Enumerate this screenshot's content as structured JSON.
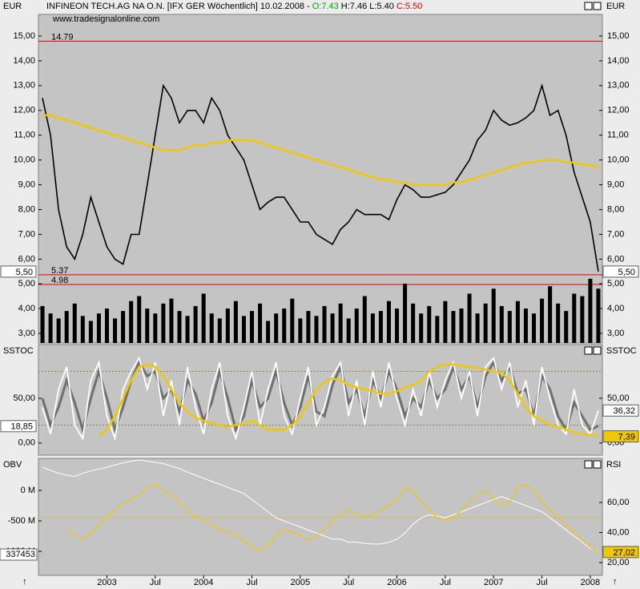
{
  "header": {
    "symbol": "INFINEON TECH.AG NA O.N. [IFX GER  Wöchentlich] 10.02.2008 - ",
    "open": "O:7.43",
    "high_low": "H:7.46 L:5.40",
    "close": "C:5.50",
    "source": "www.tradesignalonline.com"
  },
  "chart_data": [
    {
      "type": "line",
      "axis_label": "EUR",
      "ylim": [
        5.4,
        15.87
      ],
      "yticks": [
        {
          "value": 6,
          "label": "6,00"
        },
        {
          "value": 7,
          "label": "7,00"
        },
        {
          "value": 8,
          "label": "8,00"
        },
        {
          "value": 9,
          "label": "9,00"
        },
        {
          "value": 10,
          "label": "10,00"
        },
        {
          "value": 11,
          "label": "11,00"
        },
        {
          "value": 12,
          "label": "12,00"
        },
        {
          "value": 13,
          "label": "13,00"
        },
        {
          "value": 14,
          "label": "14,00"
        },
        {
          "value": 15,
          "label": "15,00"
        }
      ],
      "reference_lines": [
        14.79,
        5.37,
        4.98
      ],
      "reference_color": "#e00000",
      "series": [
        {
          "color": "#000000",
          "width": 1.6,
          "last_value_label": "5,50",
          "label_side": "both",
          "values": [
            12.5,
            11,
            8,
            6.5,
            6,
            7,
            8.5,
            7.5,
            6.5,
            6,
            5.8,
            7,
            7,
            9,
            11,
            13,
            12.5,
            11.5,
            12,
            12,
            11.5,
            12.5,
            12,
            11,
            10.5,
            10,
            9,
            8,
            8.3,
            8.5,
            8.5,
            8,
            7.5,
            7.5,
            7,
            6.8,
            6.6,
            7.2,
            7.5,
            8,
            7.8,
            7.8,
            7.8,
            7.6,
            8.4,
            9,
            8.8,
            8.5,
            8.5,
            8.6,
            8.7,
            9,
            9.5,
            10,
            10.8,
            11.2,
            12,
            11.6,
            11.4,
            11.5,
            11.7,
            12,
            13,
            11.8,
            12,
            11,
            9.5,
            8.5,
            7.5,
            5.5
          ]
        },
        {
          "color": "#f0c800",
          "width": 2.5,
          "values": [
            11.8,
            11.8,
            11.7,
            11.6,
            11.5,
            11.4,
            11.3,
            11.2,
            11.1,
            11.0,
            10.9,
            10.8,
            10.7,
            10.6,
            10.5,
            10.4,
            10.4,
            10.4,
            10.5,
            10.6,
            10.6,
            10.7,
            10.7,
            10.8,
            10.8,
            10.8,
            10.8,
            10.7,
            10.6,
            10.5,
            10.4,
            10.3,
            10.2,
            10.1,
            10.0,
            9.9,
            9.8,
            9.7,
            9.6,
            9.5,
            9.4,
            9.3,
            9.2,
            9.2,
            9.1,
            9.1,
            9.0,
            9.0,
            9.0,
            9.0,
            9.0,
            9.1,
            9.1,
            9.2,
            9.3,
            9.4,
            9.5,
            9.6,
            9.7,
            9.8,
            9.9,
            9.9,
            10.0,
            10.0,
            10.0,
            9.9,
            9.9,
            9.8,
            9.8,
            9.7
          ]
        }
      ]
    },
    {
      "type": "bar",
      "ylim": [
        2.61,
        5.39
      ],
      "yticks": [
        {
          "value": 3,
          "label": "3,00"
        },
        {
          "value": 4,
          "label": "4,00"
        },
        {
          "value": 5,
          "label": "5,00"
        }
      ],
      "series": [
        {
          "color": "#000000",
          "values": [
            4.1,
            3.8,
            3.6,
            3.9,
            4.2,
            3.7,
            3.5,
            3.8,
            4.0,
            3.6,
            3.9,
            4.3,
            4.5,
            4.0,
            3.8,
            4.2,
            4.4,
            3.9,
            3.7,
            4.1,
            4.6,
            3.8,
            3.6,
            4.0,
            4.3,
            3.7,
            3.9,
            4.2,
            3.5,
            3.8,
            4.0,
            4.4,
            3.6,
            3.9,
            3.7,
            4.1,
            3.8,
            4.2,
            3.6,
            4.0,
            4.5,
            3.8,
            3.9,
            4.3,
            4.0,
            5.0,
            4.2,
            3.8,
            4.1,
            3.7,
            4.3,
            3.9,
            4.0,
            4.6,
            3.8,
            4.2,
            4.8,
            4.1,
            3.9,
            4.3,
            4.0,
            3.8,
            4.4,
            4.9,
            4.2,
            3.9,
            4.6,
            4.5,
            5.2,
            4.8
          ]
        }
      ]
    },
    {
      "type": "line",
      "axis_label": "SSTOC",
      "ylim": [
        -13.6,
        110
      ],
      "yticks": [
        {
          "value": 0,
          "label": "0,00"
        },
        {
          "value": 50,
          "label": "50,00"
        }
      ],
      "reference_lines": [
        20,
        80
      ],
      "reference_color": "#8a8a50",
      "series": [
        {
          "color": "#707070",
          "width": 3,
          "last_value_label": "18,85",
          "label_side": "left",
          "values": [
            50,
            20,
            40,
            70,
            45,
            15,
            50,
            80,
            50,
            15,
            40,
            70,
            90,
            75,
            80,
            50,
            60,
            35,
            70,
            55,
            25,
            45,
            80,
            50,
            15,
            30,
            70,
            40,
            50,
            80,
            45,
            20,
            40,
            75,
            35,
            30,
            65,
            85,
            45,
            60,
            30,
            70,
            50,
            80,
            60,
            30,
            50,
            40,
            70,
            50,
            60,
            85,
            60,
            75,
            40,
            75,
            90,
            70,
            85,
            55,
            60,
            30,
            75,
            60,
            30,
            15,
            45,
            30,
            15,
            18.85
          ]
        },
        {
          "color": "#ffffff",
          "width": 1.8,
          "last_value_label": "36,32",
          "label_side": "right",
          "values": [
            40,
            10,
            60,
            85,
            20,
            5,
            70,
            90,
            30,
            5,
            60,
            80,
            95,
            60,
            90,
            30,
            70,
            20,
            85,
            40,
            10,
            60,
            90,
            30,
            5,
            40,
            80,
            20,
            60,
            90,
            30,
            10,
            50,
            85,
            20,
            40,
            75,
            90,
            30,
            70,
            20,
            80,
            40,
            90,
            50,
            20,
            60,
            30,
            80,
            40,
            70,
            90,
            50,
            80,
            30,
            85,
            95,
            60,
            90,
            40,
            70,
            20,
            85,
            50,
            20,
            10,
            60,
            20,
            10,
            36.32
          ]
        },
        {
          "color": "#f0c800",
          "width": 2.5,
          "last_value_label": "7,39",
          "label_side": "right",
          "values": [
            null,
            null,
            null,
            null,
            null,
            null,
            null,
            8,
            15,
            30,
            50,
            70,
            85,
            88,
            85,
            75,
            60,
            45,
            35,
            28,
            25,
            22,
            20,
            18,
            20,
            22,
            25,
            20,
            15,
            15,
            15,
            20,
            30,
            45,
            60,
            68,
            72,
            70,
            65,
            62,
            60,
            58,
            55,
            55,
            58,
            62,
            65,
            70,
            80,
            85,
            88,
            88,
            86,
            85,
            84,
            82,
            80,
            78,
            70,
            55,
            40,
            30,
            25,
            20,
            18,
            15,
            12,
            10,
            9,
            7.39
          ]
        }
      ]
    },
    {
      "type": "line",
      "axis_label": "OBV",
      "y2_label": "RSI",
      "ylim": [
        -1395,
        526
      ],
      "yticks": [
        {
          "value": 0,
          "label": "0 M"
        },
        {
          "value": -500,
          "label": "-500 M"
        },
        {
          "value": -1000,
          "label": "-1000 M"
        }
      ],
      "y2lim": [
        11.5,
        89.3
      ],
      "y2ticks": [
        {
          "value": 20,
          "label": "20,00"
        },
        {
          "value": 40,
          "label": "40,00"
        },
        {
          "value": 60,
          "label": "60,00"
        }
      ],
      "y2_reference_lines": [
        50
      ],
      "reference_color": "#e0b800",
      "annotation": "337453",
      "series": [
        {
          "color": "#ffffff",
          "width": 1,
          "values": [
            380,
            330,
            280,
            250,
            230,
            280,
            320,
            350,
            380,
            420,
            450,
            480,
            500,
            480,
            460,
            440,
            400,
            360,
            300,
            250,
            200,
            150,
            100,
            50,
            0,
            -50,
            -150,
            -250,
            -350,
            -450,
            -500,
            -550,
            -600,
            -650,
            -700,
            -750,
            -800,
            -800,
            -850,
            -850,
            -870,
            -880,
            -880,
            -850,
            -800,
            -700,
            -550,
            -450,
            -400,
            -420,
            -450,
            -400,
            -350,
            -300,
            -250,
            -200,
            -150,
            -100,
            -150,
            -200,
            -250,
            -300,
            -350,
            -450,
            -550,
            -650,
            -750,
            -850,
            -950,
            -1000
          ]
        },
        {
          "color": "#f0c800",
          "width": 1.2,
          "axis": "y2",
          "last_value_label": "27,02",
          "label_side": "right",
          "values": [
            null,
            null,
            null,
            42,
            38,
            35,
            40,
            45,
            50,
            55,
            60,
            62,
            65,
            70,
            72,
            68,
            65,
            60,
            55,
            50,
            48,
            45,
            42,
            40,
            38,
            35,
            30,
            28,
            32,
            38,
            42,
            40,
            38,
            35,
            38,
            42,
            48,
            52,
            55,
            52,
            50,
            52,
            55,
            58,
            62,
            70,
            68,
            60,
            55,
            50,
            48,
            50,
            55,
            60,
            65,
            68,
            62,
            58,
            60,
            70,
            72,
            68,
            60,
            55,
            50,
            45,
            40,
            35,
            30,
            27.02
          ]
        }
      ],
      "categories": [
        null,
        null,
        null,
        null,
        null,
        null,
        null,
        null,
        "2003",
        null,
        null,
        null,
        null,
        null,
        "Jul",
        null,
        null,
        null,
        null,
        null,
        "2004",
        null,
        null,
        null,
        null,
        null,
        "Jul",
        null,
        null,
        null,
        null,
        null,
        "2005",
        null,
        null,
        null,
        null,
        null,
        "Jul",
        null,
        null,
        null,
        null,
        null,
        "2006",
        null,
        null,
        null,
        null,
        null,
        "Jul",
        null,
        null,
        null,
        null,
        null,
        "2007",
        null,
        null,
        null,
        null,
        null,
        "Jul",
        null,
        null,
        null,
        null,
        null,
        "2008",
        null
      ]
    }
  ]
}
